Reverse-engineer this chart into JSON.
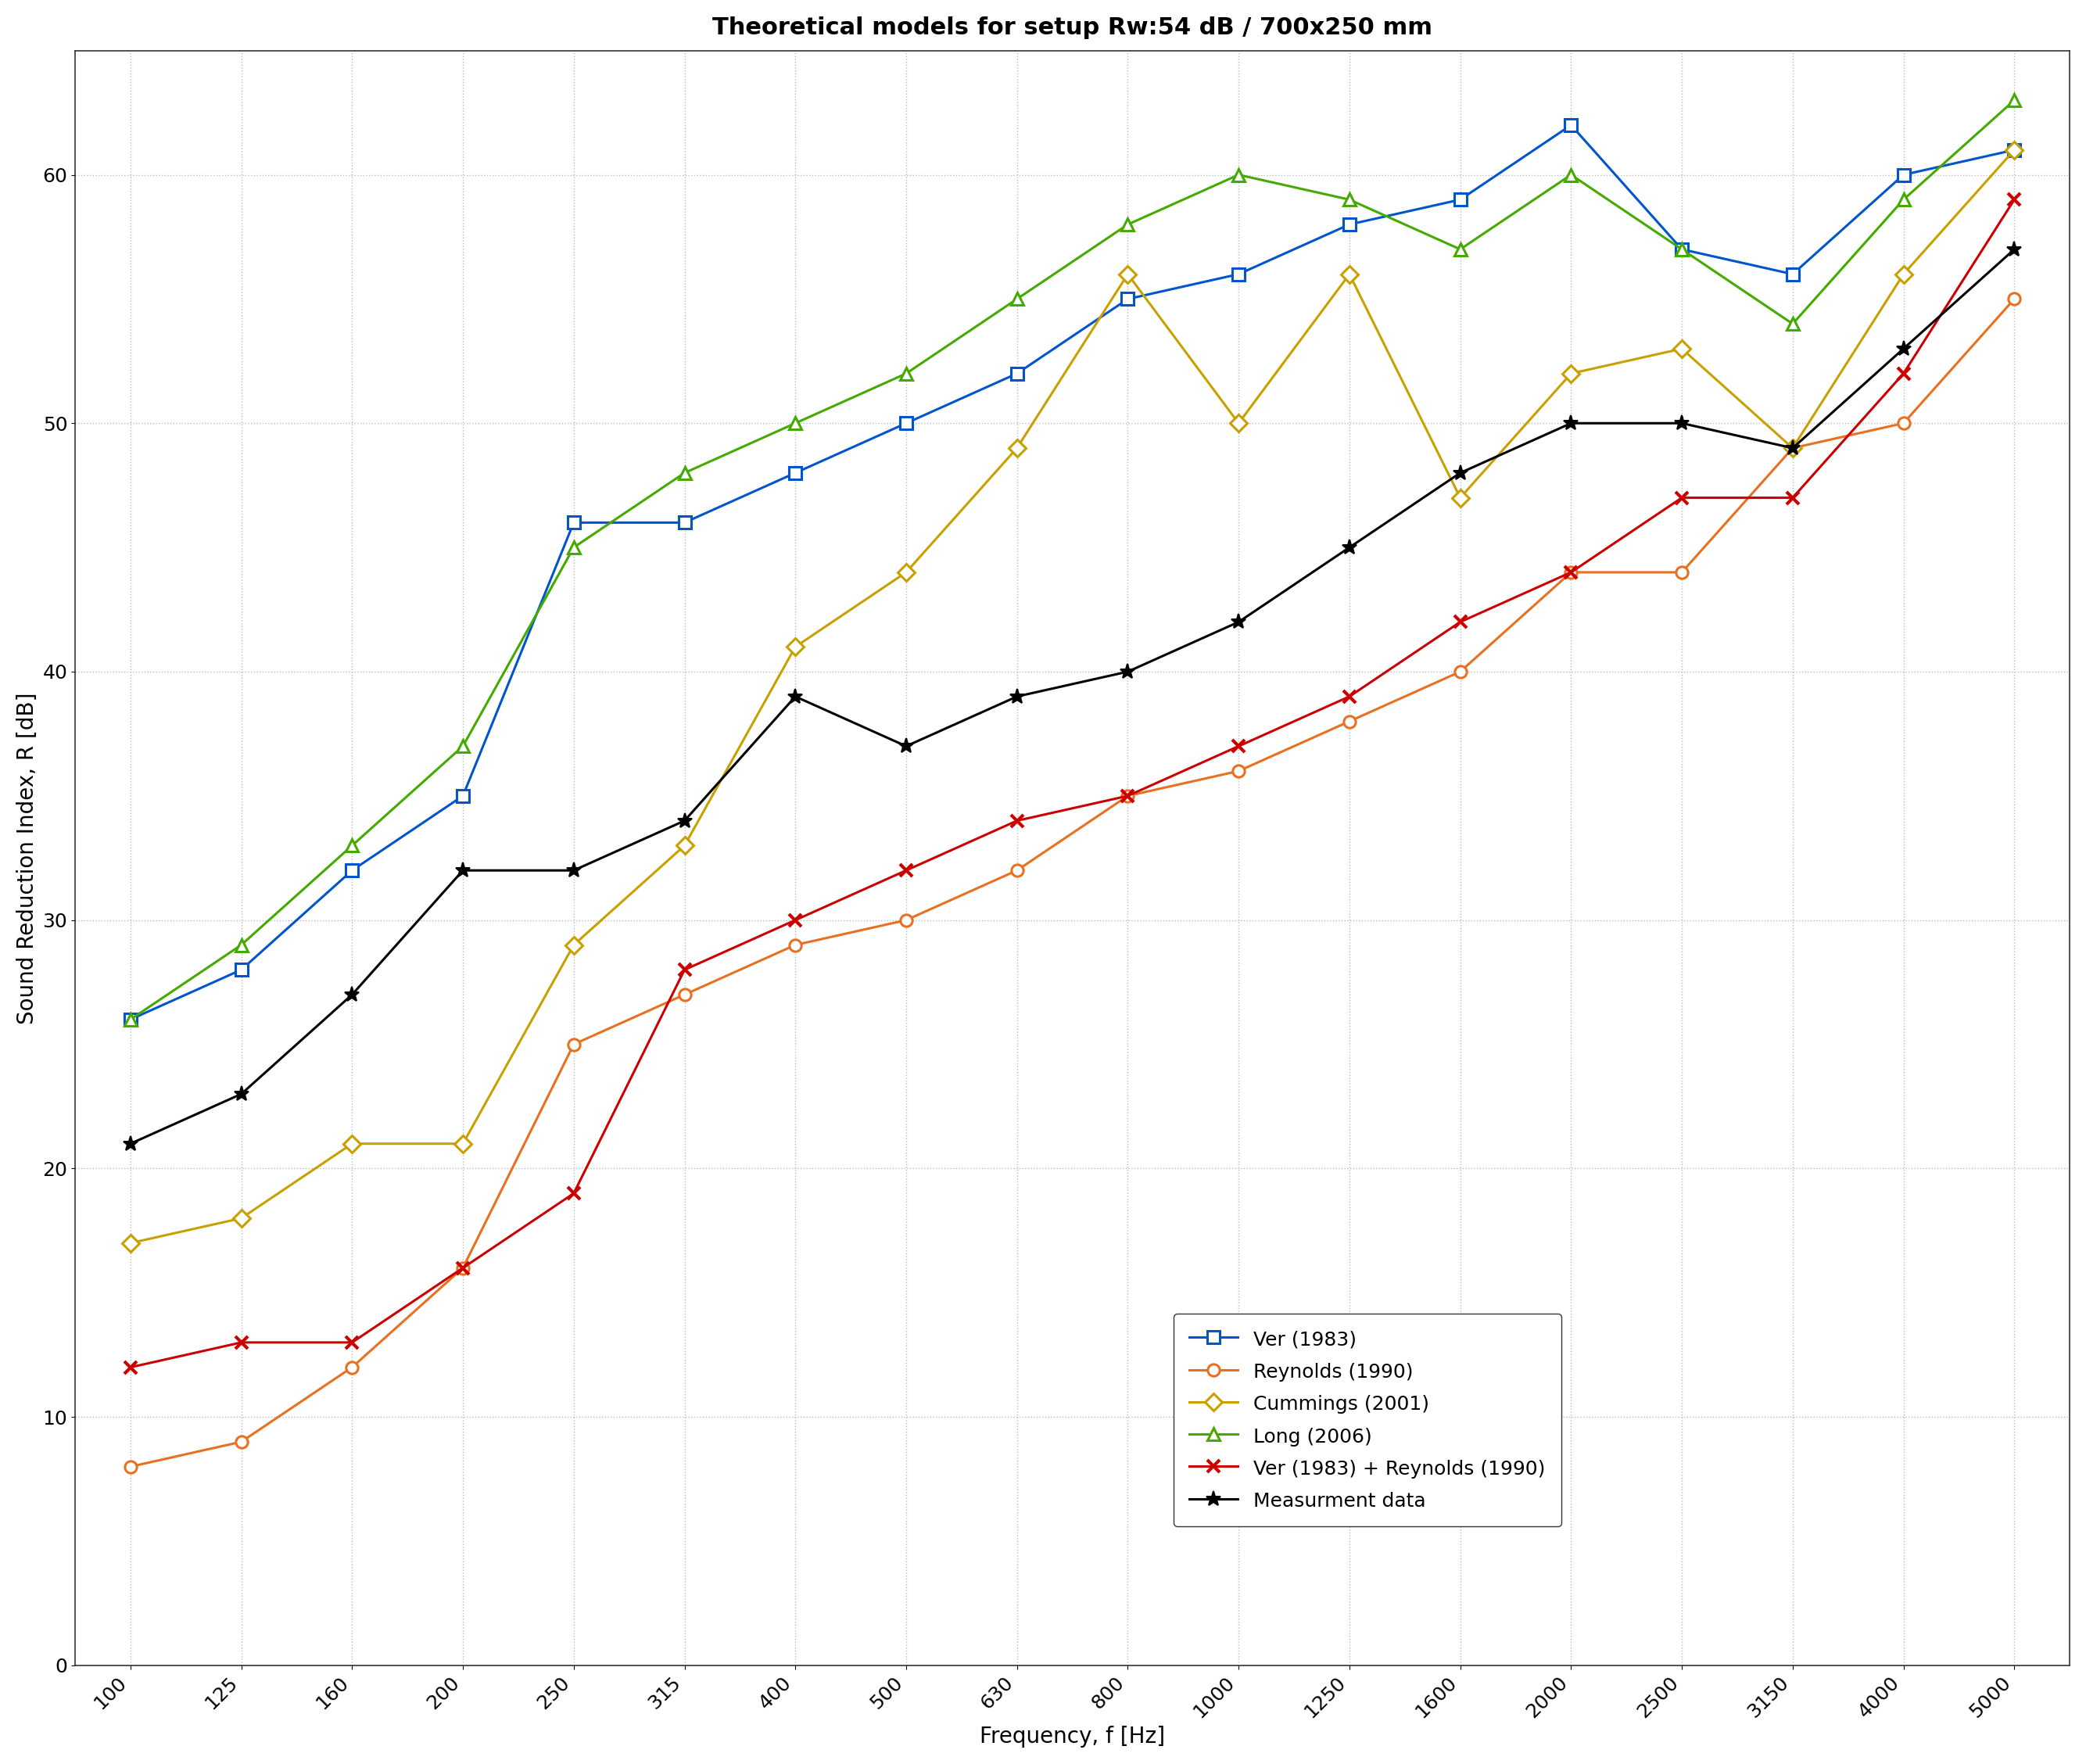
{
  "title": "Theoretical models for setup Rw:54 dB / 700x250 mm",
  "xlabel": "Frequency, f [Hz]",
  "ylabel": "Sound Reduction Index, R [dB]",
  "frequencies": [
    100,
    125,
    160,
    200,
    250,
    315,
    400,
    500,
    630,
    800,
    1000,
    1250,
    1600,
    2000,
    2500,
    3150,
    4000,
    5000
  ],
  "ver1983": [
    26,
    28,
    32,
    35,
    46,
    46,
    48,
    50,
    52,
    55,
    56,
    58,
    59,
    62,
    57,
    56,
    60,
    61
  ],
  "reynolds1990": [
    8,
    9,
    12,
    16,
    25,
    27,
    29,
    30,
    32,
    35,
    36,
    38,
    40,
    44,
    44,
    49,
    50,
    55
  ],
  "cummings2001": [
    17,
    18,
    21,
    21,
    29,
    33,
    41,
    44,
    49,
    56,
    50,
    56,
    47,
    52,
    53,
    49,
    56,
    61
  ],
  "long2006": [
    26,
    29,
    33,
    37,
    45,
    48,
    50,
    52,
    55,
    58,
    60,
    59,
    57,
    60,
    57,
    54,
    59,
    63
  ],
  "ver_reynolds": [
    12,
    13,
    13,
    16,
    19,
    28,
    30,
    32,
    34,
    35,
    37,
    39,
    42,
    44,
    47,
    47,
    52,
    59
  ],
  "measurement": [
    21,
    23,
    27,
    32,
    32,
    34,
    39,
    37,
    39,
    40,
    42,
    45,
    48,
    50,
    50,
    49,
    53,
    57
  ],
  "ver1983_color": "#0055CC",
  "reynolds1990_color": "#E87020",
  "cummings2001_color": "#C8A000",
  "long2006_color": "#44AA00",
  "ver_reynolds_color": "#CC0000",
  "measurement_color": "#000000",
  "background_color": "#ffffff",
  "grid_color": "#bbbbbb",
  "ylim": [
    0,
    65
  ],
  "title_fontsize": 22,
  "label_fontsize": 20,
  "tick_fontsize": 18,
  "legend_fontsize": 18
}
